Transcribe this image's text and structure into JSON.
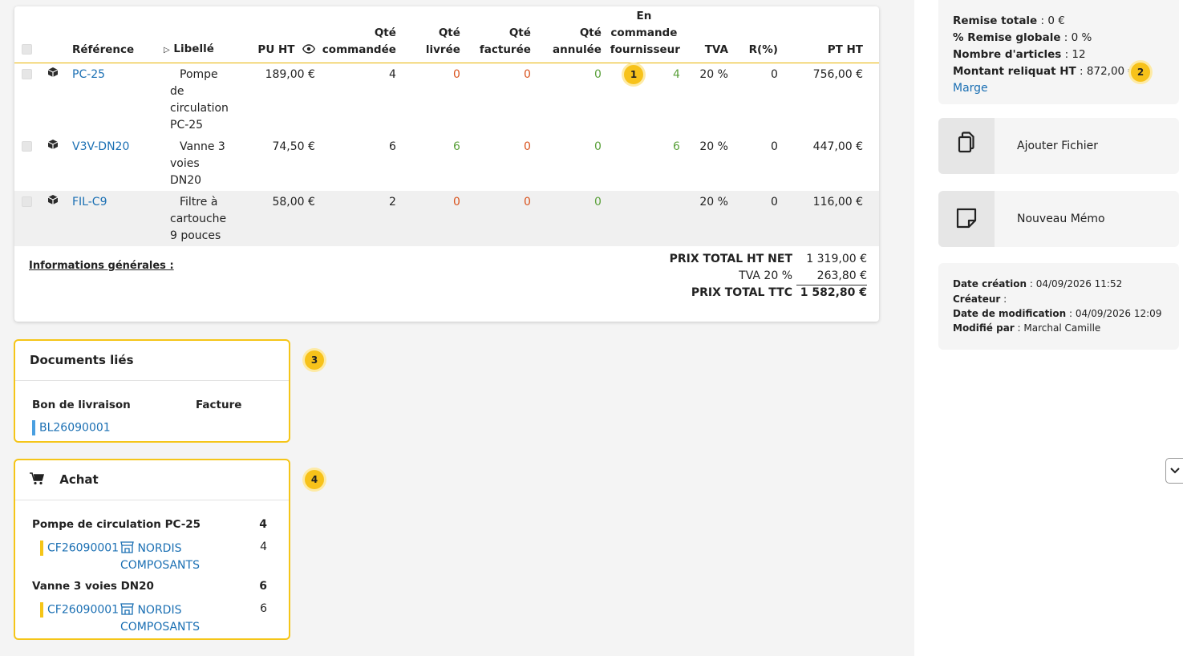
{
  "lines": {
    "headers": {
      "reference": "Référence",
      "libelle": "Libellé",
      "pu_ht": "PU HT",
      "qte_commandee": [
        "Qté",
        "commandée"
      ],
      "qte_livree": [
        "Qté",
        "livrée"
      ],
      "qte_facturee": [
        "Qté",
        "facturée"
      ],
      "qte_annulee": [
        "Qté",
        "annulée"
      ],
      "en_commande": [
        "En",
        "commande",
        "fournisseur"
      ],
      "tva": "TVA",
      "remise": "R(%)",
      "pt_ht": "PT HT"
    },
    "rows": [
      {
        "ref": "PC-25",
        "libelle": [
          "Pompe",
          "de",
          "circulation",
          "PC-25"
        ],
        "pu": "189,00 €",
        "cmd": "4",
        "livree": "0",
        "facturee": "0",
        "annulee": "0",
        "fournisseur": "4",
        "tva": "20 %",
        "remise": "0",
        "pt": "756,00 €"
      },
      {
        "ref": "V3V-DN20",
        "libelle": [
          "Vanne 3",
          "voies",
          "DN20"
        ],
        "pu": "74,50 €",
        "cmd": "6",
        "livree": "6",
        "facturee": "0",
        "annulee": "0",
        "fournisseur": "6",
        "tva": "20 %",
        "remise": "0",
        "pt": "447,00 €"
      },
      {
        "ref": "FIL-C9",
        "libelle": [
          "Filtre à",
          "cartouche",
          "9 pouces"
        ],
        "pu": "58,00 €",
        "cmd": "2",
        "livree": "0",
        "facturee": "0",
        "annulee": "0",
        "fournisseur": "",
        "tva": "20 %",
        "remise": "0",
        "pt": "116,00 €"
      }
    ],
    "general_info": "Informations générales :",
    "totals": {
      "ht_net_label": "PRIX TOTAL HT NET",
      "ht_net": "1 319,00 €",
      "tva_label": "TVA 20 %",
      "tva": "263,80 €",
      "ttc_label": "PRIX TOTAL TTC",
      "ttc": "1 582,80 €"
    }
  },
  "badges": [
    "1",
    "2",
    "3",
    "4"
  ],
  "documents": {
    "title": "Documents liés",
    "col_bl": "Bon de livraison",
    "col_facture": "Facture",
    "bl_ref": "BL26090001",
    "bl_color": "#4a9fe0"
  },
  "achat": {
    "title": "Achat",
    "items": [
      {
        "name": "Pompe de circulation PC-25",
        "qty": "4",
        "cf": "CF26090001",
        "supplier": [
          "NORDIS",
          "COMPOSANTS"
        ],
        "cf_qty": "4"
      },
      {
        "name": "Vanne 3 voies DN20",
        "qty": "6",
        "cf": "CF26090001",
        "supplier": [
          "NORDIS",
          "COMPOSANTS"
        ],
        "cf_qty": "6"
      }
    ],
    "cf_color": "#f5c518"
  },
  "summary": {
    "remise_totale_label": "Remise totale",
    "remise_totale": " : 0 €",
    "remise_globale_label": "% Remise globale",
    "remise_globale": " : 0 %",
    "nb_articles_label": "Nombre d'articles",
    "nb_articles": " : 12",
    "reliquat_label": "Montant reliquat HT",
    "reliquat": " : 872,00 €",
    "marge": "Marge"
  },
  "actions": {
    "add_file": "Ajouter Fichier",
    "new_memo": "Nouveau Mémo"
  },
  "meta": {
    "creation_label": "Date création",
    "creation": " : 04/09/2026 11:52",
    "createur_label": "Créateur",
    "createur": " :",
    "modif_label": "Date de modification",
    "modif": " : 04/09/2026 12:09",
    "modifie_par_label": "Modifié par",
    "modifie_par": " : Marchal Camille"
  },
  "colors": {
    "accent": "#f5c518",
    "link": "#1a6fb3",
    "orange": "#d9531e",
    "green": "#5aa03a"
  }
}
